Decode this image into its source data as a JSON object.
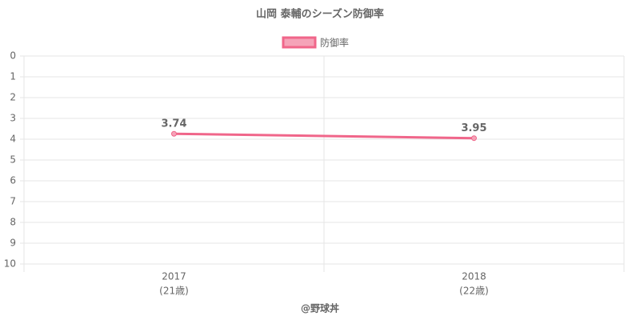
{
  "chart_data": {
    "type": "line",
    "title": "山岡 泰輔のシーズン防御率",
    "categories": [
      "2017",
      "2018"
    ],
    "category_sublabels": [
      "(21歳)",
      "(22歳)"
    ],
    "series": [
      {
        "name": "防御率",
        "color": "#f0668a",
        "values": [
          3.74,
          3.95
        ]
      }
    ],
    "ylim": [
      0,
      10
    ],
    "y_reversed": true,
    "yticks": [
      0,
      1,
      2,
      3,
      4,
      5,
      6,
      7,
      8,
      9,
      10
    ],
    "grid": true,
    "legend": "top",
    "footer": "@野球丼"
  }
}
